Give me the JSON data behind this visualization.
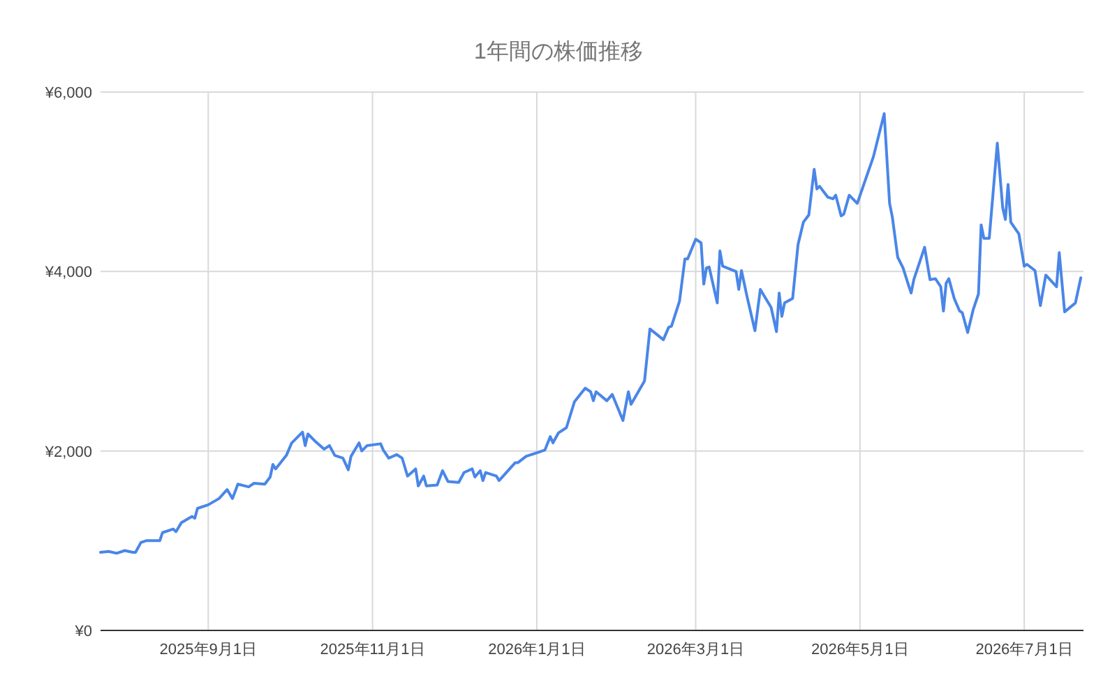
{
  "chart_data": {
    "type": "line",
    "title": "1年間の株価推移",
    "x": [
      "2025-07-23",
      "2025-07-26",
      "2025-07-29",
      "2025-08-01",
      "2025-08-04",
      "2025-08-05",
      "2025-08-07",
      "2025-08-09",
      "2025-08-14",
      "2025-08-15",
      "2025-08-19",
      "2025-08-20",
      "2025-08-22",
      "2025-08-26",
      "2025-08-27",
      "2025-08-28",
      "2025-09-01",
      "2025-09-05",
      "2025-09-08",
      "2025-09-10",
      "2025-09-12",
      "2025-09-16",
      "2025-09-18",
      "2025-09-22",
      "2025-09-24",
      "2025-09-25",
      "2025-09-26",
      "2025-09-30",
      "2025-10-02",
      "2025-10-06",
      "2025-10-07",
      "2025-10-08",
      "2025-10-11",
      "2025-10-14",
      "2025-10-16",
      "2025-10-18",
      "2025-10-21",
      "2025-10-23",
      "2025-10-24",
      "2025-10-27",
      "2025-10-28",
      "2025-10-30",
      "2025-11-04",
      "2025-11-05",
      "2025-11-07",
      "2025-11-10",
      "2025-11-12",
      "2025-11-14",
      "2025-11-17",
      "2025-11-18",
      "2025-11-20",
      "2025-11-21",
      "2025-11-25",
      "2025-11-27",
      "2025-11-29",
      "2025-12-03",
      "2025-12-05",
      "2025-12-08",
      "2025-12-09",
      "2025-12-11",
      "2025-12-12",
      "2025-12-13",
      "2025-12-17",
      "2025-12-18",
      "2025-12-24",
      "2025-12-25",
      "2025-12-28",
      "2026-01-04",
      "2026-01-06",
      "2026-01-07",
      "2026-01-09",
      "2026-01-12",
      "2026-01-15",
      "2026-01-19",
      "2026-01-21",
      "2026-01-22",
      "2026-01-23",
      "2026-01-27",
      "2026-01-29",
      "2026-02-02",
      "2026-02-04",
      "2026-02-05",
      "2026-02-10",
      "2026-02-12",
      "2026-02-17",
      "2026-02-19",
      "2026-02-20",
      "2026-02-23",
      "2026-02-25",
      "2026-02-26",
      "2026-03-01",
      "2026-03-03",
      "2026-03-04",
      "2026-03-05",
      "2026-03-06",
      "2026-03-09",
      "2026-03-10",
      "2026-03-11",
      "2026-03-16",
      "2026-03-17",
      "2026-03-18",
      "2026-03-20",
      "2026-03-23",
      "2026-03-25",
      "2026-03-27",
      "2026-03-29",
      "2026-03-31",
      "2026-04-01",
      "2026-04-02",
      "2026-04-03",
      "2026-04-06",
      "2026-04-08",
      "2026-04-10",
      "2026-04-12",
      "2026-04-14",
      "2026-04-15",
      "2026-04-16",
      "2026-04-19",
      "2026-04-21",
      "2026-04-22",
      "2026-04-24",
      "2026-04-25",
      "2026-04-27",
      "2026-04-30",
      "2026-05-06",
      "2026-05-10",
      "2026-05-12",
      "2026-05-13",
      "2026-05-15",
      "2026-05-17",
      "2026-05-19",
      "2026-05-20",
      "2026-05-21",
      "2026-05-25",
      "2026-05-27",
      "2026-05-29",
      "2026-05-31",
      "2026-06-01",
      "2026-06-02",
      "2026-06-03",
      "2026-06-05",
      "2026-06-07",
      "2026-06-08",
      "2026-06-10",
      "2026-06-12",
      "2026-06-14",
      "2026-06-15",
      "2026-06-16",
      "2026-06-18",
      "2026-06-21",
      "2026-06-23",
      "2026-06-24",
      "2026-06-25",
      "2026-06-26",
      "2026-06-29",
      "2026-07-01",
      "2026-07-02",
      "2026-07-05",
      "2026-07-07",
      "2026-07-09",
      "2026-07-13",
      "2026-07-14",
      "2026-07-16",
      "2026-07-20",
      "2026-07-22"
    ],
    "series": [
      {
        "color": "#4a86e8",
        "values": [
          870,
          880,
          860,
          890,
          870,
          870,
          980,
          1000,
          1000,
          1090,
          1130,
          1100,
          1200,
          1270,
          1250,
          1360,
          1400,
          1470,
          1570,
          1470,
          1630,
          1600,
          1640,
          1630,
          1710,
          1850,
          1800,
          1950,
          2090,
          2210,
          2060,
          2190,
          2100,
          2020,
          2060,
          1950,
          1920,
          1790,
          1940,
          2090,
          2000,
          2060,
          2080,
          2010,
          1920,
          1960,
          1920,
          1720,
          1800,
          1610,
          1720,
          1610,
          1620,
          1780,
          1660,
          1650,
          1760,
          1800,
          1710,
          1780,
          1670,
          1760,
          1720,
          1670,
          1870,
          1870,
          1940,
          2010,
          2160,
          2090,
          2200,
          2260,
          2550,
          2700,
          2660,
          2560,
          2660,
          2560,
          2630,
          2340,
          2660,
          2520,
          2780,
          3360,
          3240,
          3380,
          3390,
          3670,
          4140,
          4140,
          4360,
          4320,
          3860,
          4040,
          4050,
          3650,
          4230,
          4060,
          4000,
          3800,
          4010,
          3730,
          3340,
          3800,
          3700,
          3600,
          3330,
          3760,
          3500,
          3650,
          3700,
          4300,
          4550,
          4630,
          5140,
          4920,
          4950,
          4830,
          4810,
          4850,
          4620,
          4640,
          4850,
          4760,
          5280,
          5760,
          4760,
          4610,
          4160,
          4040,
          3850,
          3760,
          3910,
          4270,
          3910,
          3920,
          3830,
          3560,
          3870,
          3920,
          3700,
          3560,
          3540,
          3320,
          3570,
          3750,
          4520,
          4370,
          4370,
          5430,
          4710,
          4580,
          4970,
          4550,
          4420,
          4060,
          4080,
          4010,
          3620,
          3960,
          3830,
          4210,
          3550,
          3650,
          3930
        ]
      }
    ],
    "xlim": [
      "2025-07-23",
      "2026-07-23"
    ],
    "xticks": [
      {
        "value": "2025-09-01",
        "label": "2025年9月1日"
      },
      {
        "value": "2025-11-01",
        "label": "2025年11月1日"
      },
      {
        "value": "2026-01-01",
        "label": "2026年1月1日"
      },
      {
        "value": "2026-03-01",
        "label": "2026年3月1日"
      },
      {
        "value": "2026-05-01",
        "label": "2026年5月1日"
      },
      {
        "value": "2026-07-01",
        "label": "2026年7月1日"
      }
    ],
    "ylim": [
      0,
      6000
    ],
    "yticks": [
      {
        "value": 0,
        "label": "¥0"
      },
      {
        "value": 2000,
        "label": "¥2,000"
      },
      {
        "value": 4000,
        "label": "¥4,000"
      },
      {
        "value": 6000,
        "label": "¥6,000"
      }
    ],
    "grid": true
  }
}
